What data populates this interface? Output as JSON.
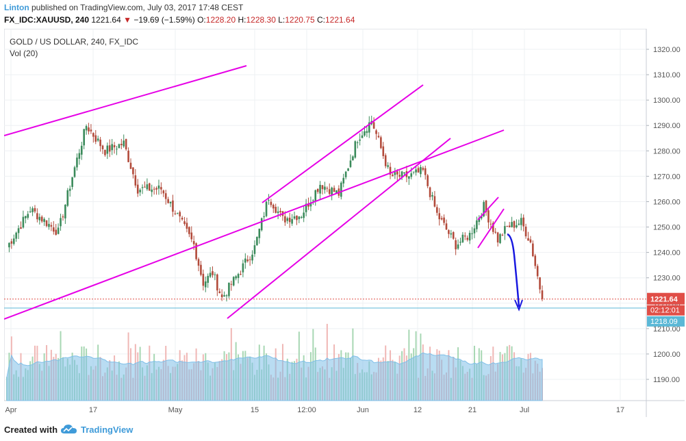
{
  "header": {
    "author": "Linton",
    "published_text": "published on TradingView.com, July 03, 2017 17:48 CEST",
    "symbol": "FX_IDC:XAUUSD, 240",
    "last": "1221.64",
    "change": "−19.69 (−1.59%)",
    "o_label": "O:",
    "o_value": "1228.20",
    "h_label": "H:",
    "h_value": "1228.30",
    "l_label": "L:",
    "l_value": "1220.75",
    "c_label": "C:",
    "c_value": "1221.64"
  },
  "legend": {
    "title": "GOLD / US DOLLAR, 240, FX_IDC",
    "volume": "Vol (20)"
  },
  "footer": {
    "created_with": "Created with",
    "brand": "TradingView"
  },
  "colors": {
    "up": "#3a8a5a",
    "down": "#b24a3a",
    "trendline": "#e600e6",
    "arrow": "#1818e0",
    "vol_up": "#a7d7b3",
    "vol_down": "#f0b7b5",
    "vol_ma": "#7fbfe8",
    "last_price_tag": "#e04e47",
    "line_tag": "#5bb8d6"
  },
  "chart_data": {
    "type": "candlestick",
    "y_range": [
      1180,
      1325
    ],
    "y_ticks": [
      1190,
      1200,
      1210,
      1220,
      1230,
      1240,
      1250,
      1260,
      1270,
      1280,
      1290,
      1300,
      1310,
      1320
    ],
    "x_ticks": [
      "Apr",
      "17",
      "May",
      "15",
      "12:00",
      "Jun",
      "12",
      "21",
      "Jul",
      "17"
    ],
    "last_price": 1221.64,
    "countdown": "02:12:01",
    "horizontal_line_value": 1218.09,
    "close_path": [
      {
        "bar": 0,
        "close": 1242
      },
      {
        "bar": 10,
        "close": 1257
      },
      {
        "bar": 22,
        "close": 1248
      },
      {
        "bar": 28,
        "close": 1270
      },
      {
        "bar": 34,
        "close": 1290
      },
      {
        "bar": 42,
        "close": 1280
      },
      {
        "bar": 50,
        "close": 1283
      },
      {
        "bar": 56,
        "close": 1265
      },
      {
        "bar": 66,
        "close": 1265
      },
      {
        "bar": 72,
        "close": 1256
      },
      {
        "bar": 80,
        "close": 1243
      },
      {
        "bar": 84,
        "close": 1228
      },
      {
        "bar": 88,
        "close": 1232
      },
      {
        "bar": 92,
        "close": 1222
      },
      {
        "bar": 100,
        "close": 1233
      },
      {
        "bar": 106,
        "close": 1242
      },
      {
        "bar": 112,
        "close": 1262
      },
      {
        "bar": 118,
        "close": 1253
      },
      {
        "bar": 126,
        "close": 1255
      },
      {
        "bar": 134,
        "close": 1267
      },
      {
        "bar": 142,
        "close": 1263
      },
      {
        "bar": 150,
        "close": 1285
      },
      {
        "bar": 156,
        "close": 1292
      },
      {
        "bar": 164,
        "close": 1270
      },
      {
        "bar": 172,
        "close": 1270
      },
      {
        "bar": 178,
        "close": 1272
      },
      {
        "bar": 184,
        "close": 1255
      },
      {
        "bar": 192,
        "close": 1243
      },
      {
        "bar": 198,
        "close": 1247
      },
      {
        "bar": 204,
        "close": 1258
      },
      {
        "bar": 210,
        "close": 1245
      },
      {
        "bar": 214,
        "close": 1250
      },
      {
        "bar": 220,
        "close": 1252
      },
      {
        "bar": 224,
        "close": 1244
      },
      {
        "bar": 229,
        "close": 1221.64
      }
    ],
    "total_bars": 230,
    "volume_range": [
      0,
      250
    ]
  }
}
